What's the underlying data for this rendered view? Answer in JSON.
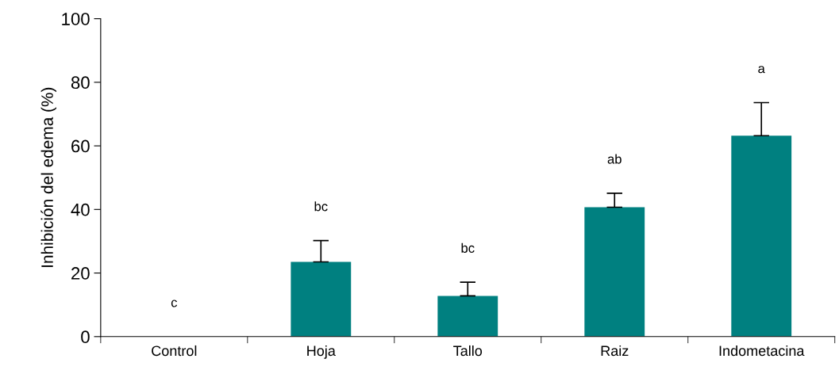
{
  "chart_data": {
    "type": "bar",
    "ylabel": "Inhibición del edema (%)",
    "categories": [
      "Control",
      "Hoja",
      "Tallo",
      "Raiz",
      "Indometacina"
    ],
    "values": [
      0,
      23.5,
      12.8,
      40.7,
      63.2
    ],
    "errors": [
      null,
      [
        23.5,
        30.2
      ],
      [
        12.8,
        17.1
      ],
      [
        40.7,
        45.1
      ],
      [
        63.2,
        73.6
      ]
    ],
    "color": "#008080",
    "ylim": [
      0,
      100
    ],
    "yticks": [
      0,
      20,
      40,
      60,
      80,
      100
    ],
    "grid": false,
    "annotations": [
      "c",
      "bc",
      "bc",
      "ab",
      "a"
    ]
  }
}
